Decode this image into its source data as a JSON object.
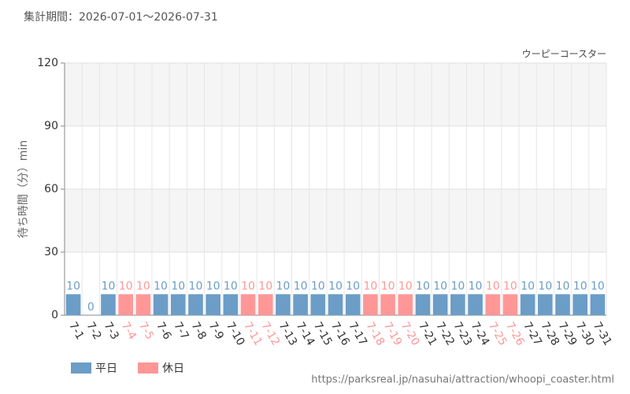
{
  "chart_data": {
    "type": "bar",
    "subtitle": "集計期間：2026-07-01～2026-07-31",
    "title": "ウーピーコースター",
    "y_label": "待ち時間（分）min",
    "categories": [
      "7-1",
      "7-2",
      "7-3",
      "7-4",
      "7-5",
      "7-6",
      "7-7",
      "7-8",
      "7-9",
      "7-10",
      "7-11",
      "7-12",
      "7-13",
      "7-14",
      "7-15",
      "7-16",
      "7-17",
      "7-18",
      "7-19",
      "7-20",
      "7-21",
      "7-22",
      "7-23",
      "7-24",
      "7-25",
      "7-26",
      "7-27",
      "7-28",
      "7-29",
      "7-30",
      "7-31"
    ],
    "series": [
      {
        "name": "平日",
        "color": "#6b9dc7",
        "values": [
          10,
          0,
          10,
          null,
          null,
          10,
          10,
          10,
          10,
          10,
          null,
          null,
          10,
          10,
          10,
          10,
          10,
          null,
          null,
          null,
          10,
          10,
          10,
          10,
          null,
          null,
          10,
          10,
          10,
          10,
          10
        ]
      },
      {
        "name": "休日",
        "color": "#ff9797",
        "values": [
          null,
          null,
          null,
          10,
          10,
          null,
          null,
          null,
          null,
          null,
          10,
          10,
          null,
          null,
          null,
          null,
          null,
          10,
          10,
          10,
          null,
          null,
          null,
          null,
          10,
          10,
          null,
          null,
          null,
          null,
          null
        ]
      }
    ],
    "ylim": [
      0,
      120
    ],
    "yticks": [
      0,
      30,
      60,
      90,
      120
    ],
    "grid": true
  },
  "footer": {
    "url": "https://parksreal.jp/nasuhai/attraction/whoopi_coaster.html"
  }
}
